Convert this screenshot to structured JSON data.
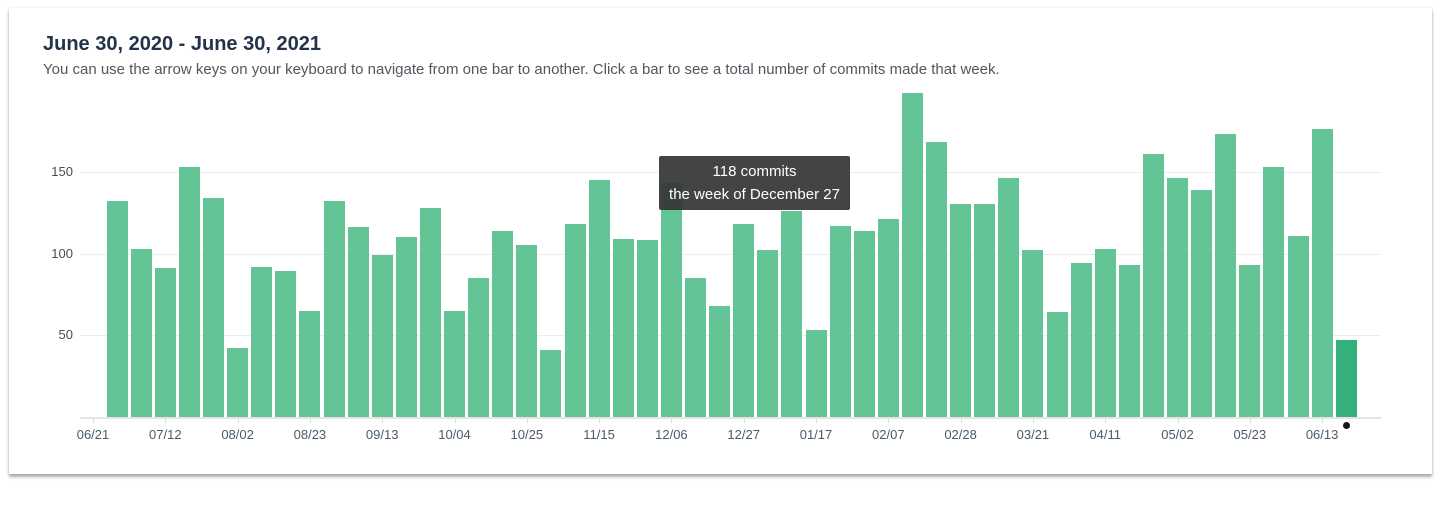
{
  "header": {
    "title": "June 30, 2020 - June 30, 2021",
    "subtitle": "You can use the arrow keys on your keyboard to navigate from one bar to another. Click a bar to see a total number of commits made that week."
  },
  "tooltip": {
    "line1": "118 commits",
    "line2": "the week of December 27",
    "week": "12/27"
  },
  "colors": {
    "bar": "#63c495",
    "bar_selected": "#34b07a",
    "tooltip_bg": "rgba(52,54,56,0.93)",
    "gridline": "#ededed",
    "axis_line": "#e5e5e5",
    "title_text": "#22334a",
    "subtitle_text": "#51575e",
    "axis_label_text": "#4b5a68"
  },
  "chart_data": {
    "type": "bar",
    "title": "June 30, 2020 - June 30, 2021",
    "xlabel": "",
    "ylabel": "",
    "ylim": [
      0,
      200
    ],
    "yticks": [
      50,
      100,
      150
    ],
    "grid": "horizontal",
    "legend": false,
    "x_tick_labels": [
      "06/21",
      "07/12",
      "08/02",
      "08/23",
      "09/13",
      "10/04",
      "10/25",
      "11/15",
      "12/06",
      "12/27",
      "01/17",
      "02/07",
      "02/28",
      "03/21",
      "04/11",
      "05/02",
      "05/23",
      "06/13"
    ],
    "selected_week": "06/20",
    "tooltip_week": "12/27",
    "tooltip_value": 118,
    "weeks": [
      {
        "week": "06/21",
        "commits": null
      },
      {
        "week": "06/28",
        "commits": 132
      },
      {
        "week": "07/05",
        "commits": 103
      },
      {
        "week": "07/12",
        "commits": 91
      },
      {
        "week": "07/19",
        "commits": 153
      },
      {
        "week": "07/26",
        "commits": 134
      },
      {
        "week": "08/02",
        "commits": 42
      },
      {
        "week": "08/09",
        "commits": 92
      },
      {
        "week": "08/16",
        "commits": 89
      },
      {
        "week": "08/23",
        "commits": 65
      },
      {
        "week": "08/30",
        "commits": 132
      },
      {
        "week": "09/06",
        "commits": 116
      },
      {
        "week": "09/13",
        "commits": 99
      },
      {
        "week": "09/20",
        "commits": 110
      },
      {
        "week": "09/27",
        "commits": 128
      },
      {
        "week": "10/04",
        "commits": 65
      },
      {
        "week": "10/11",
        "commits": 85
      },
      {
        "week": "10/18",
        "commits": 114
      },
      {
        "week": "10/25",
        "commits": 105
      },
      {
        "week": "11/01",
        "commits": 41
      },
      {
        "week": "11/08",
        "commits": 118
      },
      {
        "week": "11/15",
        "commits": 145
      },
      {
        "week": "11/22",
        "commits": 109
      },
      {
        "week": "11/29",
        "commits": 108
      },
      {
        "week": "12/06",
        "commits": 143
      },
      {
        "week": "12/13",
        "commits": 85
      },
      {
        "week": "12/20",
        "commits": 68
      },
      {
        "week": "12/27",
        "commits": 118
      },
      {
        "week": "01/03",
        "commits": 102
      },
      {
        "week": "01/10",
        "commits": 126
      },
      {
        "week": "01/17",
        "commits": 53
      },
      {
        "week": "01/24",
        "commits": 117
      },
      {
        "week": "01/31",
        "commits": 114
      },
      {
        "week": "02/07",
        "commits": 121
      },
      {
        "week": "02/14",
        "commits": 198
      },
      {
        "week": "02/21",
        "commits": 168
      },
      {
        "week": "02/28",
        "commits": 130
      },
      {
        "week": "03/07",
        "commits": 130
      },
      {
        "week": "03/14",
        "commits": 146
      },
      {
        "week": "03/21",
        "commits": 102
      },
      {
        "week": "03/28",
        "commits": 64
      },
      {
        "week": "04/04",
        "commits": 94
      },
      {
        "week": "04/11",
        "commits": 103
      },
      {
        "week": "04/18",
        "commits": 93
      },
      {
        "week": "04/25",
        "commits": 161
      },
      {
        "week": "05/02",
        "commits": 146
      },
      {
        "week": "05/09",
        "commits": 139
      },
      {
        "week": "05/16",
        "commits": 173
      },
      {
        "week": "05/23",
        "commits": 93
      },
      {
        "week": "05/30",
        "commits": 153
      },
      {
        "week": "06/06",
        "commits": 111
      },
      {
        "week": "06/13",
        "commits": 176
      },
      {
        "week": "06/20",
        "commits": 47
      }
    ]
  }
}
